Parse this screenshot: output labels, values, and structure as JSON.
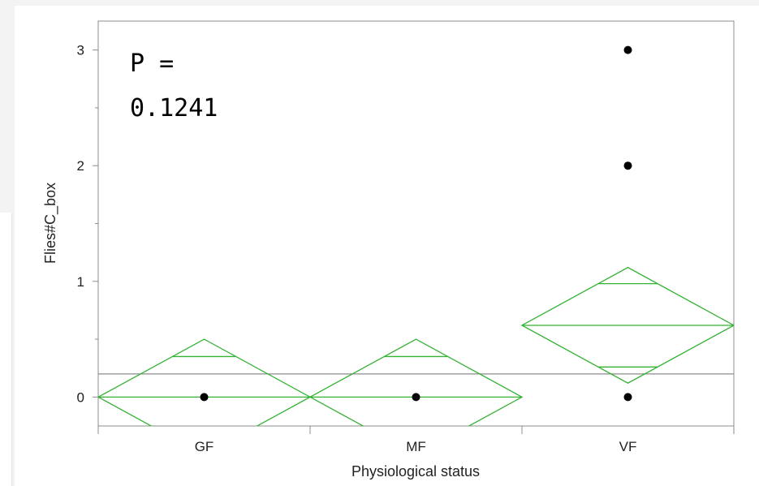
{
  "chart_data": {
    "type": "scatter",
    "subtype": "means-diamonds",
    "annotation": [
      "P =",
      "0.1241"
    ],
    "xlabel": "Physiological status",
    "ylabel": "Flies#C_box",
    "categories": [
      "GF",
      "MF",
      "VF"
    ],
    "y_ticks": [
      0,
      1,
      2,
      3
    ],
    "ylim": [
      -0.25,
      3.25
    ],
    "grand_mean": 0.2,
    "points": [
      {
        "category": "GF",
        "y": 0
      },
      {
        "category": "MF",
        "y": 0
      },
      {
        "category": "VF",
        "y": 3
      },
      {
        "category": "VF",
        "y": 2
      },
      {
        "category": "VF",
        "y": 0
      }
    ],
    "diamonds": [
      {
        "category": "GF",
        "mean": 0,
        "upper": 0.5,
        "lower": -0.5,
        "overlap_upper": 0.35,
        "overlap_lower": -0.35
      },
      {
        "category": "MF",
        "mean": 0,
        "upper": 0.5,
        "lower": -0.5,
        "overlap_upper": 0.35,
        "overlap_lower": -0.35
      },
      {
        "category": "VF",
        "mean": 0.62,
        "upper": 1.12,
        "lower": 0.12,
        "overlap_upper": 0.98,
        "overlap_lower": 0.26
      }
    ],
    "colors": {
      "diamond": "#33b233",
      "grand_mean_line": "#8c8c8c",
      "point": "#000000",
      "axis": "#8c8c8c"
    },
    "grid": false
  }
}
